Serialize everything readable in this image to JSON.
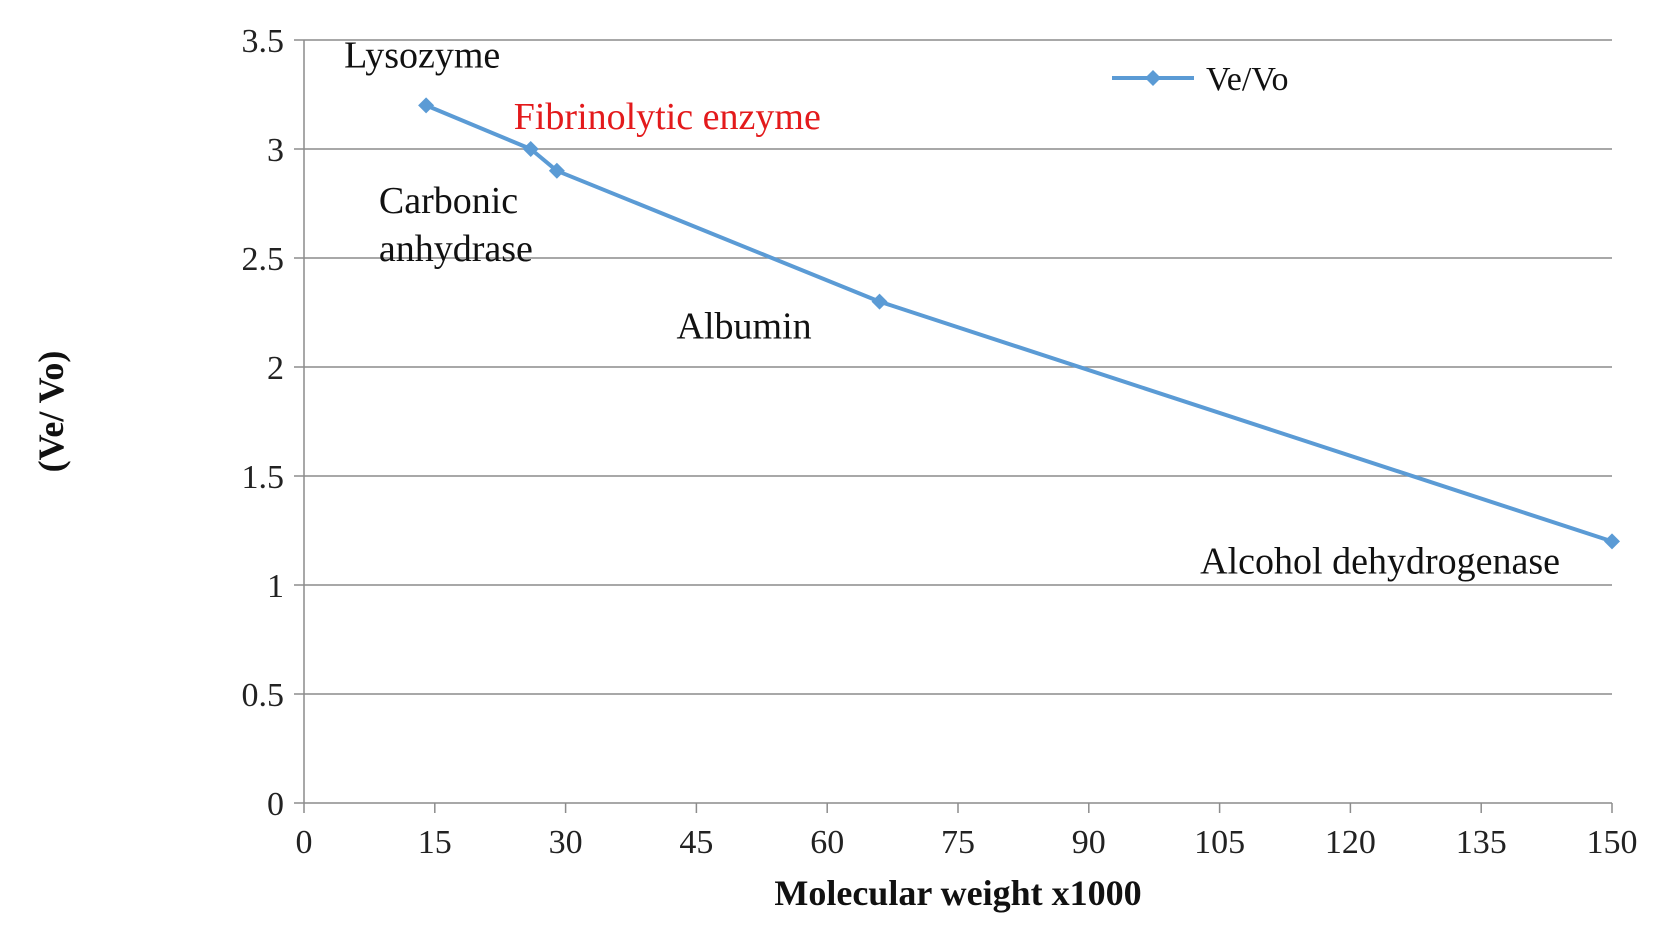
{
  "chart_data": {
    "type": "line",
    "xlabel": "Molecular weight x1000",
    "ylabel": "(Ve/ Vo)",
    "xlim": [
      0,
      150
    ],
    "ylim": [
      0,
      3.5
    ],
    "xticks": [
      0,
      15,
      30,
      45,
      60,
      75,
      90,
      105,
      120,
      135,
      150
    ],
    "yticks": [
      0,
      0.5,
      1,
      1.5,
      2,
      2.5,
      3,
      3.5
    ],
    "grid": "horizontal",
    "legend": "top-right",
    "series": [
      {
        "name": "Ve/Vo",
        "color": "#5B9BD5",
        "marker": "diamond",
        "x": [
          14,
          26,
          29,
          66,
          150
        ],
        "y": [
          3.2,
          3.0,
          2.9,
          2.3,
          1.2
        ]
      }
    ],
    "annotations": [
      {
        "lines": [
          "Lysozyme"
        ],
        "x": 14,
        "y": 3.2,
        "color": "#111111"
      },
      {
        "lines": [
          "Fibrinolytic  enzyme"
        ],
        "x": 26,
        "y": 3.0,
        "color": "#E31A1C"
      },
      {
        "lines": [
          "Carbonic",
          "anhydrase"
        ],
        "x": 29,
        "y": 2.9,
        "color": "#111111"
      },
      {
        "lines": [
          "Albumin"
        ],
        "x": 66,
        "y": 2.3,
        "color": "#111111"
      },
      {
        "lines": [
          "Alcohol dehydrogenase"
        ],
        "x": 150,
        "y": 1.2,
        "color": "#111111"
      }
    ]
  }
}
